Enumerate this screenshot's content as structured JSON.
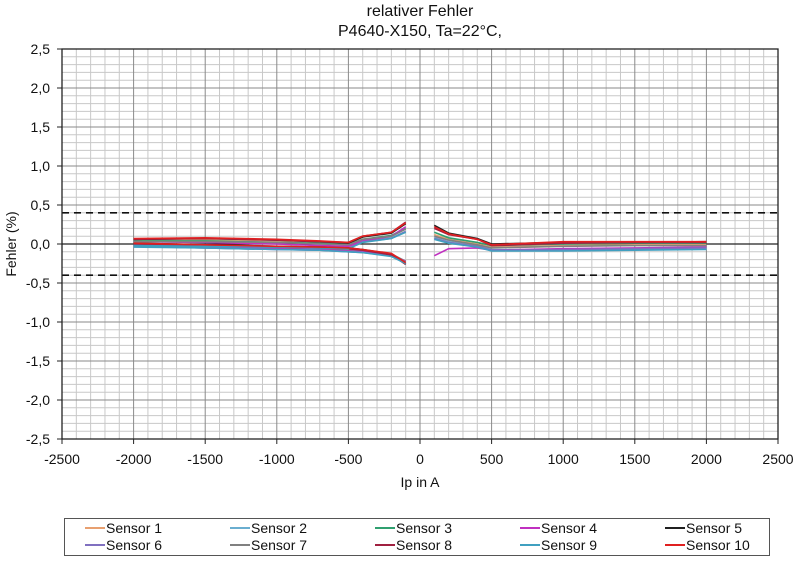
{
  "chart_data": {
    "type": "line",
    "title": "relativer Fehler",
    "subtitle": "P4640-X150, Ta=22°C,",
    "xlabel": "Ip in A",
    "ylabel": "Fehler (%)",
    "xlim": [
      -2500,
      2500
    ],
    "ylim": [
      -2.5,
      2.5
    ],
    "xticks": [
      "-2500",
      "-2000",
      "-1500",
      "-1000",
      "-500",
      "0",
      "500",
      "1000",
      "1500",
      "2000",
      "2500"
    ],
    "yticks": [
      "2,5",
      "2,0",
      "1,5",
      "1,0",
      "0,5",
      "0,0",
      "-0,5",
      "-1,0",
      "-1,5",
      "-2,0",
      "-2,5"
    ],
    "grid": true,
    "legend_position": "bottom",
    "limit_lines": [
      0.4,
      -0.4
    ],
    "x": [
      -2000,
      -1500,
      -1000,
      -700,
      -500,
      -400,
      -200,
      -100,
      100,
      200,
      400,
      500,
      1000,
      1500,
      2000
    ],
    "series": [
      {
        "name": "Sensor 1",
        "color": "#e8a070",
        "upper": [
          0.05,
          0.05,
          0.03,
          0.01,
          0.0,
          0.06,
          0.1,
          0.2
        ],
        "lower": [
          0.0,
          -0.02,
          -0.04,
          -0.05,
          -0.06,
          -0.08,
          -0.14,
          -0.23
        ],
        "pos": [
          0.12,
          0.06,
          0.0,
          -0.04,
          -0.02,
          -0.01,
          -0.01
        ]
      },
      {
        "name": "Sensor 2",
        "color": "#6aaed0",
        "upper": [
          -0.02,
          -0.03,
          -0.04,
          -0.05,
          -0.05,
          0.03,
          0.08,
          0.16
        ],
        "lower": [
          -0.03,
          -0.05,
          -0.07,
          -0.08,
          -0.09,
          -0.1,
          -0.15,
          -0.24
        ],
        "pos": [
          0.08,
          0.03,
          -0.02,
          -0.07,
          -0.08,
          -0.07,
          -0.06
        ]
      },
      {
        "name": "Sensor 3",
        "color": "#30a070",
        "upper": [
          0.04,
          0.04,
          0.02,
          0.01,
          -0.01,
          0.06,
          0.11,
          0.2
        ],
        "lower": [
          0.0,
          -0.02,
          -0.04,
          -0.05,
          -0.06,
          -0.08,
          -0.13,
          -0.22
        ],
        "pos": [
          0.15,
          0.08,
          0.02,
          -0.02,
          0.0,
          0.01,
          0.01
        ]
      },
      {
        "name": "Sensor 4",
        "color": "#c030c0",
        "upper": [
          0.03,
          0.02,
          0.0,
          -0.02,
          -0.03,
          0.04,
          0.1,
          0.22
        ],
        "lower": [
          -0.02,
          -0.04,
          -0.06,
          -0.07,
          -0.08,
          -0.09,
          -0.14,
          -0.22
        ],
        "pos": [
          -0.15,
          -0.06,
          -0.05,
          -0.08,
          -0.06,
          -0.05,
          -0.04
        ]
      },
      {
        "name": "Sensor 5",
        "color": "#202020",
        "upper": [
          0.06,
          0.07,
          0.05,
          0.03,
          0.01,
          0.09,
          0.14,
          0.26
        ],
        "lower": [
          0.01,
          -0.01,
          -0.03,
          -0.04,
          -0.05,
          -0.07,
          -0.13,
          -0.26
        ],
        "pos": [
          0.24,
          0.14,
          0.07,
          0.0,
          0.02,
          0.02,
          0.03
        ]
      },
      {
        "name": "Sensor 6",
        "color": "#8070c0",
        "upper": [
          -0.01,
          -0.02,
          -0.04,
          -0.05,
          -0.06,
          0.03,
          0.07,
          0.16
        ],
        "lower": [
          -0.03,
          -0.05,
          -0.07,
          -0.08,
          -0.1,
          -0.11,
          -0.15,
          -0.24
        ],
        "pos": [
          0.07,
          0.02,
          -0.03,
          -0.08,
          -0.07,
          -0.06,
          -0.05
        ]
      },
      {
        "name": "Sensor 7",
        "color": "#808080",
        "upper": [
          0.03,
          0.03,
          0.02,
          0.0,
          -0.01,
          0.06,
          0.1,
          0.19
        ],
        "lower": [
          0.0,
          -0.02,
          -0.04,
          -0.05,
          -0.07,
          -0.08,
          -0.13,
          -0.23
        ],
        "pos": [
          0.1,
          0.05,
          -0.01,
          -0.05,
          -0.03,
          -0.02,
          -0.02
        ]
      },
      {
        "name": "Sensor 8",
        "color": "#a02040",
        "upper": [
          0.06,
          0.07,
          0.05,
          0.03,
          0.02,
          0.1,
          0.15,
          0.28
        ],
        "lower": [
          0.0,
          -0.02,
          -0.04,
          -0.05,
          -0.06,
          -0.08,
          -0.14,
          -0.26
        ],
        "pos": [
          0.2,
          0.12,
          0.06,
          -0.02,
          0.01,
          0.02,
          0.02
        ]
      },
      {
        "name": "Sensor 9",
        "color": "#40a0c0",
        "upper": [
          -0.02,
          -0.03,
          -0.04,
          -0.05,
          -0.06,
          0.02,
          0.07,
          0.15
        ],
        "lower": [
          -0.04,
          -0.05,
          -0.07,
          -0.08,
          -0.1,
          -0.11,
          -0.16,
          -0.25
        ],
        "pos": [
          0.06,
          0.01,
          -0.04,
          -0.09,
          -0.09,
          -0.08,
          -0.07
        ]
      },
      {
        "name": "Sensor 10",
        "color": "#e02020",
        "upper": [
          0.07,
          0.08,
          0.06,
          0.04,
          0.02,
          0.1,
          0.15,
          0.27
        ],
        "lower": [
          0.01,
          -0.01,
          -0.03,
          -0.04,
          -0.05,
          -0.07,
          -0.12,
          -0.24
        ],
        "pos": [
          0.22,
          0.13,
          0.06,
          -0.01,
          0.03,
          0.03,
          0.03
        ]
      }
    ],
    "series_notes": "upper/lower: negative-current branch values at x=[-2000,-1500,-1000,-700,-500,-400,-200,-100]; pos: positive-current branch at x=[100,200,400,500,1000,1500,2000]"
  },
  "legend": {
    "items": [
      {
        "label": "Sensor 1",
        "color": "#e8a070"
      },
      {
        "label": "Sensor 2",
        "color": "#6aaed0"
      },
      {
        "label": "Sensor 3",
        "color": "#30a070"
      },
      {
        "label": "Sensor 4",
        "color": "#c030c0"
      },
      {
        "label": "Sensor 5",
        "color": "#202020"
      },
      {
        "label": "Sensor 6",
        "color": "#8070c0"
      },
      {
        "label": "Sensor 7",
        "color": "#808080"
      },
      {
        "label": "Sensor 8",
        "color": "#a02040"
      },
      {
        "label": "Sensor 9",
        "color": "#40a0c0"
      },
      {
        "label": "Sensor 10",
        "color": "#e02020"
      }
    ]
  }
}
